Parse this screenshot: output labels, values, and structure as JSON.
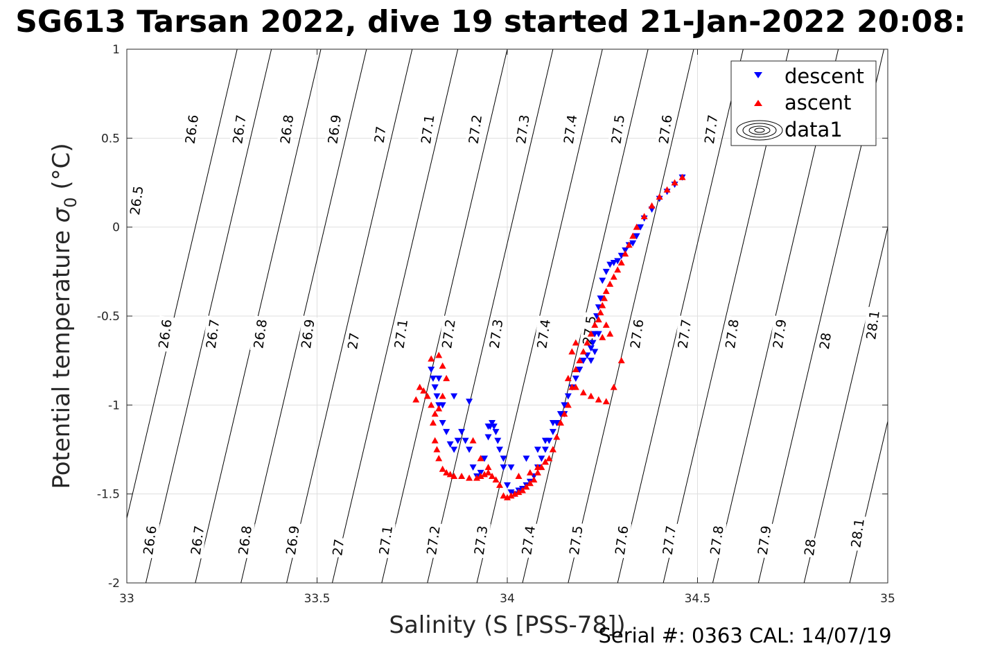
{
  "chart_data": {
    "type": "scatter",
    "title": "SG613 Tarsan 2022, dive 19 started 21-Jan-2022 20:08:",
    "xlabel": "Salinity (S [PSS-78])",
    "ylabel_main": "Potential temperature ",
    "ylabel_sigma": "σ",
    "ylabel_sub": "0",
    "ylabel_unit": " (°C)",
    "footer": "Serial #: 0363  CAL: 14/07/19",
    "xlim": [
      33,
      35
    ],
    "ylim": [
      -2,
      1
    ],
    "xticks": [
      {
        "v": 33,
        "label": "33"
      },
      {
        "v": 33.5,
        "label": "33.5"
      },
      {
        "v": 34,
        "label": "34"
      },
      {
        "v": 34.5,
        "label": "34.5"
      },
      {
        "v": 35,
        "label": "35"
      }
    ],
    "yticks": [
      {
        "v": 1,
        "label": "1"
      },
      {
        "v": 0.5,
        "label": "0.5"
      },
      {
        "v": 0,
        "label": "0"
      },
      {
        "v": -0.5,
        "label": "-0.5"
      },
      {
        "v": -1,
        "label": "-1"
      },
      {
        "v": -1.5,
        "label": "-1.5"
      },
      {
        "v": -2,
        "label": "-2"
      }
    ],
    "grid": true,
    "legend_position": "top-right",
    "legend": [
      {
        "label": "descent",
        "marker": "triangle-down",
        "color": "#0000ff"
      },
      {
        "label": "ascent",
        "marker": "triangle-up",
        "color": "#ff0000"
      },
      {
        "label": "data1",
        "marker": "contour",
        "color": "#000000"
      }
    ],
    "density_contours": {
      "x_intercept_at_ymin": [
        33.05,
        33.18,
        33.3,
        33.42,
        33.54,
        33.67,
        33.79,
        33.92,
        34.04,
        34.16,
        34.29,
        34.41,
        34.54,
        34.66,
        34.78,
        34.9
      ],
      "slope_x_per_degC": 0.11,
      "levels": [
        "26.5",
        "26.6",
        "26.7",
        "26.8",
        "26.9",
        "27",
        "27.1",
        "27.2",
        "27.3",
        "27.4",
        "27.5",
        "27.6",
        "27.7",
        "27.8",
        "27.9",
        "28",
        "28.1"
      ],
      "labels": [
        {
          "text": "26.5",
          "x": 33.025,
          "y": 0.15
        },
        {
          "text": "26.6",
          "x": 33.17,
          "y": 0.55
        },
        {
          "text": "26.7",
          "x": 33.295,
          "y": 0.55
        },
        {
          "text": "26.8",
          "x": 33.42,
          "y": 0.55
        },
        {
          "text": "26.9",
          "x": 33.545,
          "y": 0.55
        },
        {
          "text": "27",
          "x": 33.665,
          "y": 0.52
        },
        {
          "text": "27.1",
          "x": 33.79,
          "y": 0.55
        },
        {
          "text": "27.2",
          "x": 33.915,
          "y": 0.55
        },
        {
          "text": "27.3",
          "x": 34.04,
          "y": 0.55
        },
        {
          "text": "27.4",
          "x": 34.165,
          "y": 0.55
        },
        {
          "text": "27.5",
          "x": 34.29,
          "y": 0.55
        },
        {
          "text": "27.6",
          "x": 34.415,
          "y": 0.55
        },
        {
          "text": "27.7",
          "x": 34.535,
          "y": 0.55
        },
        {
          "text": "26.6",
          "x": 33.1,
          "y": -0.6
        },
        {
          "text": "26.7",
          "x": 33.225,
          "y": -0.6
        },
        {
          "text": "26.8",
          "x": 33.35,
          "y": -0.6
        },
        {
          "text": "26.9",
          "x": 33.475,
          "y": -0.6
        },
        {
          "text": "27",
          "x": 33.595,
          "y": -0.64
        },
        {
          "text": "27.1",
          "x": 33.72,
          "y": -0.6
        },
        {
          "text": "27.2",
          "x": 33.845,
          "y": -0.6
        },
        {
          "text": "27.3",
          "x": 33.97,
          "y": -0.6
        },
        {
          "text": "27.4",
          "x": 34.095,
          "y": -0.6
        },
        {
          "text": "27.5",
          "x": 34.215,
          "y": -0.58
        },
        {
          "text": "27.6",
          "x": 34.34,
          "y": -0.6
        },
        {
          "text": "27.7",
          "x": 34.465,
          "y": -0.6
        },
        {
          "text": "27.8",
          "x": 34.59,
          "y": -0.6
        },
        {
          "text": "27.9",
          "x": 34.715,
          "y": -0.6
        },
        {
          "text": "28",
          "x": 34.835,
          "y": -0.64
        },
        {
          "text": "28.1",
          "x": 34.96,
          "y": -0.55
        },
        {
          "text": "26.6",
          "x": 33.06,
          "y": -1.76
        },
        {
          "text": "26.7",
          "x": 33.185,
          "y": -1.76
        },
        {
          "text": "26.8",
          "x": 33.31,
          "y": -1.76
        },
        {
          "text": "26.9",
          "x": 33.435,
          "y": -1.76
        },
        {
          "text": "27",
          "x": 33.555,
          "y": -1.8
        },
        {
          "text": "27.1",
          "x": 33.68,
          "y": -1.76
        },
        {
          "text": "27.2",
          "x": 33.805,
          "y": -1.76
        },
        {
          "text": "27.3",
          "x": 33.93,
          "y": -1.76
        },
        {
          "text": "27.4",
          "x": 34.055,
          "y": -1.76
        },
        {
          "text": "27.5",
          "x": 34.18,
          "y": -1.76
        },
        {
          "text": "27.6",
          "x": 34.3,
          "y": -1.76
        },
        {
          "text": "27.7",
          "x": 34.425,
          "y": -1.76
        },
        {
          "text": "27.8",
          "x": 34.55,
          "y": -1.76
        },
        {
          "text": "27.9",
          "x": 34.675,
          "y": -1.76
        },
        {
          "text": "28",
          "x": 34.795,
          "y": -1.8
        },
        {
          "text": "28.1",
          "x": 34.92,
          "y": -1.72
        }
      ]
    },
    "series": [
      {
        "name": "descent",
        "color": "#0000ff",
        "marker": "triangle-down",
        "x": [
          34.46,
          34.44,
          34.42,
          34.4,
          34.38,
          34.36,
          34.35,
          34.34,
          34.33,
          34.32,
          34.31,
          34.3,
          34.29,
          34.28,
          34.27,
          34.26,
          34.25,
          34.245,
          34.24,
          34.235,
          34.23,
          34.225,
          34.22,
          34.21,
          34.2,
          34.19,
          34.18,
          34.17,
          34.16,
          34.15,
          34.14,
          34.13,
          34.12,
          34.11,
          34.1,
          34.09,
          34.08,
          34.07,
          34.06,
          34.05,
          34.04,
          34.03,
          34.02,
          34.01,
          34.0,
          33.99,
          33.98,
          33.975,
          33.97,
          33.965,
          33.96,
          33.955,
          33.95,
          33.94,
          33.93,
          33.92,
          33.91,
          33.9,
          33.89,
          33.88,
          33.87,
          33.86,
          33.85,
          33.84,
          33.83,
          33.82,
          33.815,
          33.81,
          33.805,
          33.8,
          33.81,
          33.82,
          33.83,
          33.86,
          33.9,
          33.95,
          33.99,
          34.01,
          34.05,
          34.08,
          34.1,
          34.12,
          34.15,
          34.22,
          34.24,
          34.23
        ],
        "y": [
          0.28,
          0.24,
          0.2,
          0.16,
          0.1,
          0.05,
          0.0,
          -0.05,
          -0.09,
          -0.1,
          -0.13,
          -0.16,
          -0.19,
          -0.2,
          -0.21,
          -0.25,
          -0.3,
          -0.4,
          -0.45,
          -0.5,
          -0.6,
          -0.65,
          -0.68,
          -0.72,
          -0.75,
          -0.8,
          -0.85,
          -0.9,
          -0.95,
          -1.0,
          -1.05,
          -1.1,
          -1.15,
          -1.2,
          -1.25,
          -1.3,
          -1.35,
          -1.4,
          -1.43,
          -1.45,
          -1.47,
          -1.48,
          -1.5,
          -1.49,
          -1.45,
          -1.35,
          -1.25,
          -1.2,
          -1.15,
          -1.12,
          -1.1,
          -1.12,
          -1.18,
          -1.3,
          -1.38,
          -1.4,
          -1.35,
          -1.25,
          -1.2,
          -1.15,
          -1.2,
          -1.25,
          -1.22,
          -1.15,
          -1.1,
          -1.0,
          -0.95,
          -0.9,
          -0.85,
          -0.8,
          -0.9,
          -0.85,
          -1.0,
          -0.95,
          -0.98,
          -1.12,
          -1.3,
          -1.35,
          -1.3,
          -1.25,
          -1.2,
          -1.1,
          -1.05,
          -0.75,
          -0.6,
          -0.7
        ]
      },
      {
        "name": "ascent",
        "color": "#ff0000",
        "marker": "triangle-up",
        "x": [
          34.46,
          34.44,
          34.42,
          34.4,
          34.38,
          34.36,
          34.34,
          34.33,
          34.32,
          34.31,
          34.3,
          34.29,
          34.28,
          34.27,
          34.26,
          34.255,
          34.25,
          34.245,
          34.24,
          34.23,
          34.22,
          34.21,
          34.2,
          34.19,
          34.18,
          34.17,
          34.16,
          34.15,
          34.14,
          34.13,
          34.12,
          34.11,
          34.1,
          34.09,
          34.08,
          34.07,
          34.06,
          34.05,
          34.04,
          34.03,
          34.02,
          34.01,
          34.0,
          33.99,
          33.98,
          33.97,
          33.96,
          33.95,
          33.94,
          33.93,
          33.92,
          33.9,
          33.88,
          33.86,
          33.85,
          33.84,
          33.83,
          33.82,
          33.815,
          33.81,
          33.805,
          33.8,
          33.79,
          33.78,
          33.77,
          33.76,
          33.8,
          33.82,
          33.83,
          33.84,
          33.83,
          33.82,
          33.81,
          33.93,
          33.95,
          33.91,
          34.03,
          34.06,
          34.08,
          34.1,
          34.12,
          34.14,
          34.16,
          34.18,
          34.2,
          34.22,
          34.24,
          34.26,
          34.28,
          34.3,
          34.27,
          34.26,
          34.25,
          34.18,
          34.17
        ],
        "y": [
          0.28,
          0.25,
          0.21,
          0.17,
          0.12,
          0.06,
          0.0,
          -0.05,
          -0.1,
          -0.15,
          -0.2,
          -0.24,
          -0.28,
          -0.32,
          -0.36,
          -0.4,
          -0.44,
          -0.48,
          -0.52,
          -0.55,
          -0.6,
          -0.65,
          -0.7,
          -0.75,
          -0.8,
          -0.9,
          -1.0,
          -1.05,
          -1.1,
          -1.18,
          -1.25,
          -1.3,
          -1.32,
          -1.35,
          -1.38,
          -1.42,
          -1.44,
          -1.46,
          -1.48,
          -1.49,
          -1.5,
          -1.51,
          -1.52,
          -1.51,
          -1.45,
          -1.42,
          -1.4,
          -1.38,
          -1.39,
          -1.4,
          -1.41,
          -1.41,
          -1.4,
          -1.4,
          -1.39,
          -1.38,
          -1.36,
          -1.3,
          -1.25,
          -1.2,
          -1.1,
          -1.0,
          -0.95,
          -0.92,
          -0.9,
          -0.97,
          -0.74,
          -0.72,
          -0.78,
          -0.85,
          -0.95,
          -1.02,
          -1.05,
          -1.3,
          -1.35,
          -1.2,
          -1.4,
          -1.38,
          -1.35,
          -1.32,
          -1.25,
          -1.1,
          -0.85,
          -0.9,
          -0.93,
          -0.95,
          -0.97,
          -0.98,
          -0.9,
          -0.75,
          -0.6,
          -0.55,
          -0.62,
          -0.65,
          -0.7
        ]
      }
    ]
  }
}
